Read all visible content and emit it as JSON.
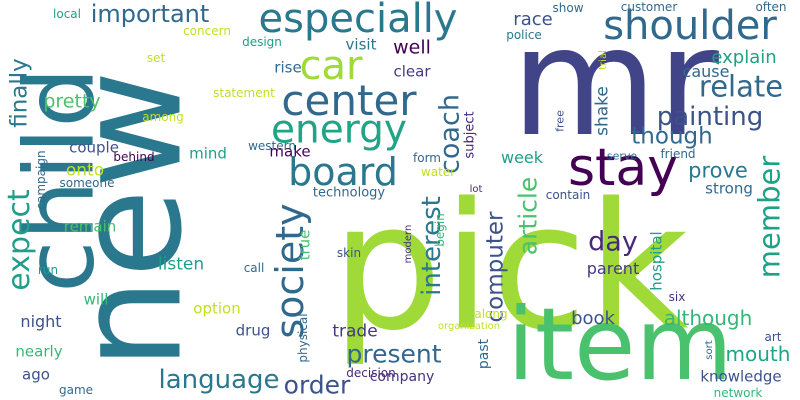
{
  "word_cloud": {
    "words": [
      {
        "text": "mr",
        "color": "#414487"
      },
      {
        "text": "pick",
        "color": "#a0da39"
      },
      {
        "text": "new",
        "color": "#2a788e"
      },
      {
        "text": "item",
        "color": "#4ac16d"
      },
      {
        "text": "child",
        "color": "#2a788e"
      },
      {
        "text": "especially",
        "color": "#2a788e"
      },
      {
        "text": "shoulder",
        "color": "#31688e"
      },
      {
        "text": "stay",
        "color": "#440154"
      },
      {
        "text": "center",
        "color": "#31688e"
      },
      {
        "text": "energy",
        "color": "#20a486"
      },
      {
        "text": "board",
        "color": "#2a788e"
      },
      {
        "text": "car",
        "color": "#a0da39"
      },
      {
        "text": "society",
        "color": "#31688e"
      },
      {
        "text": "member",
        "color": "#1fa187"
      },
      {
        "text": "expect",
        "color": "#1f9e89"
      },
      {
        "text": "important",
        "color": "#31688e"
      },
      {
        "text": "language",
        "color": "#2a788e"
      },
      {
        "text": "relate",
        "color": "#31688e"
      },
      {
        "text": "painting",
        "color": "#3b528b"
      },
      {
        "text": "interest",
        "color": "#2a788e"
      },
      {
        "text": "coach",
        "color": "#31688e"
      },
      {
        "text": "present",
        "color": "#31688e"
      },
      {
        "text": "order",
        "color": "#3b528b"
      },
      {
        "text": "article",
        "color": "#4ac16d"
      },
      {
        "text": "day",
        "color": "#482878"
      },
      {
        "text": "finally",
        "color": "#2a788e"
      },
      {
        "text": "though",
        "color": "#31688e"
      },
      {
        "text": "computer",
        "color": "#3b528b"
      },
      {
        "text": "prove",
        "color": "#2a788e"
      },
      {
        "text": "mouth",
        "color": "#20a486"
      },
      {
        "text": "although",
        "color": "#35b779"
      },
      {
        "text": "pretty",
        "color": "#4ac16d"
      },
      {
        "text": "explain",
        "color": "#1fa187"
      },
      {
        "text": "shake",
        "color": "#31688e"
      },
      {
        "text": "well",
        "color": "#440154"
      },
      {
        "text": "race",
        "color": "#3b528b"
      },
      {
        "text": "trade",
        "color": "#443983"
      },
      {
        "text": "book",
        "color": "#3b528b"
      },
      {
        "text": "listen",
        "color": "#1f9e89"
      },
      {
        "text": "knowledge",
        "color": "#3b528b"
      },
      {
        "text": "true",
        "color": "#4ac16d"
      },
      {
        "text": "strong",
        "color": "#31688e"
      },
      {
        "text": "parent",
        "color": "#443983"
      },
      {
        "text": "cause",
        "color": "#31688e"
      },
      {
        "text": "hospital",
        "color": "#1f9e89"
      },
      {
        "text": "week",
        "color": "#1f9e89"
      },
      {
        "text": "make",
        "color": "#440154"
      },
      {
        "text": "mind",
        "color": "#1f9e89"
      },
      {
        "text": "couple",
        "color": "#3b528b"
      },
      {
        "text": "onto",
        "color": "#c2df23"
      },
      {
        "text": "rise",
        "color": "#31688e"
      },
      {
        "text": "clear",
        "color": "#443983"
      },
      {
        "text": "visit",
        "color": "#2a788e"
      },
      {
        "text": "drug",
        "color": "#3b528b"
      },
      {
        "text": "company",
        "color": "#46327e"
      },
      {
        "text": "option",
        "color": "#c2df23"
      },
      {
        "text": "remain",
        "color": "#4ac16d"
      },
      {
        "text": "night",
        "color": "#3b528b"
      },
      {
        "text": "nearly",
        "color": "#35b779"
      },
      {
        "text": "ago",
        "color": "#3b528b"
      },
      {
        "text": "will",
        "color": "#35b779"
      },
      {
        "text": "subject",
        "color": "#482878"
      },
      {
        "text": "past",
        "color": "#31688e"
      },
      {
        "text": "campaign",
        "color": "#31688e"
      },
      {
        "text": "technology",
        "color": "#31688e"
      },
      {
        "text": "local",
        "color": "#1f9e89"
      },
      {
        "text": "set",
        "color": "#c2df23"
      },
      {
        "text": "statement",
        "color": "#c2df23"
      },
      {
        "text": "among",
        "color": "#c2df23"
      },
      {
        "text": "behind",
        "color": "#440154"
      },
      {
        "text": "someone",
        "color": "#31688e"
      },
      {
        "text": "run",
        "color": "#1f9e89"
      },
      {
        "text": "game",
        "color": "#31688e"
      },
      {
        "text": "western",
        "color": "#31688e"
      },
      {
        "text": "form",
        "color": "#31688e"
      },
      {
        "text": "water",
        "color": "#c2df23"
      },
      {
        "text": "skin",
        "color": "#3b528b"
      },
      {
        "text": "call",
        "color": "#31688e"
      },
      {
        "text": "physical",
        "color": "#31688e"
      },
      {
        "text": "decision",
        "color": "#482878"
      },
      {
        "text": "along",
        "color": "#c2df23"
      },
      {
        "text": "organization",
        "color": "#c2df23"
      },
      {
        "text": "begin",
        "color": "#35b779"
      },
      {
        "text": "modern",
        "color": "#46327e"
      },
      {
        "text": "lot",
        "color": "#482878"
      },
      {
        "text": "contain",
        "color": "#3b528b"
      },
      {
        "text": "free",
        "color": "#3b528b"
      },
      {
        "text": "serve",
        "color": "#31688e"
      },
      {
        "text": "friend",
        "color": "#31688e"
      },
      {
        "text": "art",
        "color": "#3b528b"
      },
      {
        "text": "six",
        "color": "#46327e"
      },
      {
        "text": "sort",
        "color": "#31688e"
      },
      {
        "text": "network",
        "color": "#35b779"
      },
      {
        "text": "show",
        "color": "#31688e"
      },
      {
        "text": "customer",
        "color": "#31688e"
      },
      {
        "text": "often",
        "color": "#31688e"
      },
      {
        "text": "police",
        "color": "#2a788e"
      },
      {
        "text": "trial",
        "color": "#c2df23"
      },
      {
        "text": "concern",
        "color": "#c2df23"
      },
      {
        "text": "design",
        "color": "#1f9e89"
      }
    ]
  }
}
